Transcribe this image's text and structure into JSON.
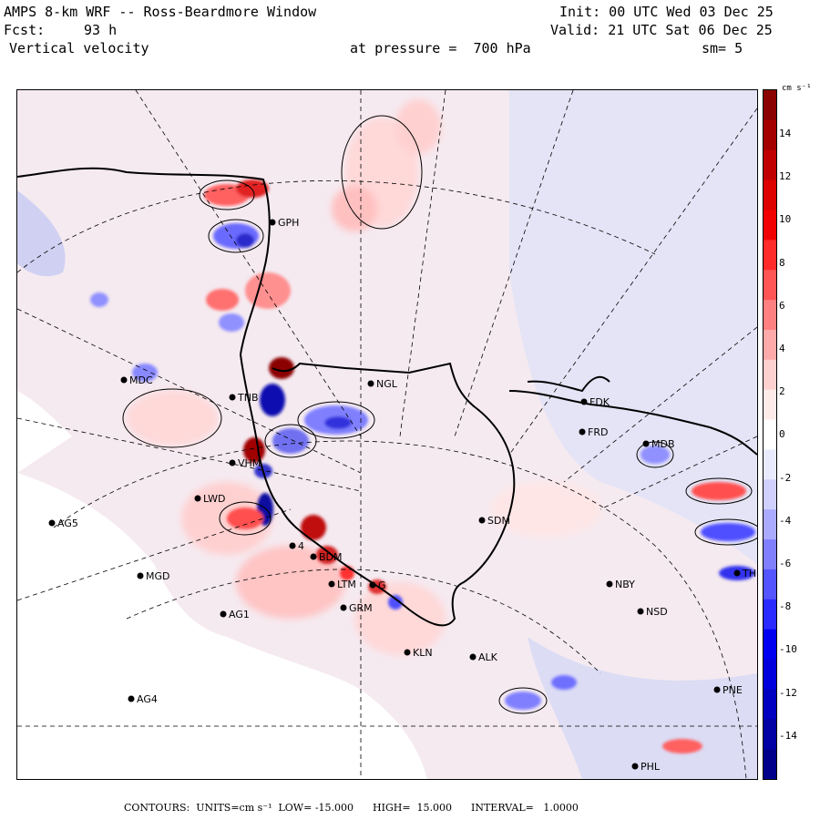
{
  "header": {
    "title": "AMPS 8-km WRF -- Ross-Beardmore Window",
    "init": "Init: 00 UTC Wed 03 Dec 25",
    "fcst_label": "Fcst:",
    "fcst_value": "93 h",
    "valid": "Valid: 21 UTC Sat 06 Dec 25",
    "variable": "Vertical velocity",
    "pressure": "at pressure =  700 hPa",
    "smooth": "sm= 5"
  },
  "stations": [
    {
      "name": "GPH"
    },
    {
      "name": "MDC"
    },
    {
      "name": "NGL"
    },
    {
      "name": "TNB"
    },
    {
      "name": "FDK"
    },
    {
      "name": "FRD"
    },
    {
      "name": "MDB"
    },
    {
      "name": "VHM"
    },
    {
      "name": "LWD"
    },
    {
      "name": "AG5"
    },
    {
      "name": "SDM"
    },
    {
      "name": "4"
    },
    {
      "name": "MGD"
    },
    {
      "name": "BDM"
    },
    {
      "name": "NBY"
    },
    {
      "name": "LTM"
    },
    {
      "name": "GRM"
    },
    {
      "name": "G"
    },
    {
      "name": "AG1"
    },
    {
      "name": "NSD"
    },
    {
      "name": "KLN"
    },
    {
      "name": "ALK"
    },
    {
      "name": "AG4"
    },
    {
      "name": "PNE"
    },
    {
      "name": "PHL"
    },
    {
      "name": "TH"
    }
  ],
  "colorbar": {
    "unit": "cm s⁻¹",
    "ticks": [
      "14",
      "12",
      "10",
      "8",
      "6",
      "4",
      "2",
      "0",
      "-2",
      "-4",
      "-6",
      "-8",
      "-10",
      "-12",
      "-14"
    ],
    "colors": [
      "#8b0000",
      "#a50000",
      "#c00000",
      "#dc0000",
      "#f00000",
      "#ff2a2a",
      "#ff5555",
      "#ff8080",
      "#ffaaaa",
      "#ffd0d0",
      "#ffeaea",
      "#ffffff",
      "#eaeaff",
      "#d0d0ff",
      "#aaaaff",
      "#8080ff",
      "#5555ff",
      "#2a2aff",
      "#0000f0",
      "#0000dc",
      "#0000c0",
      "#0000a5",
      "#00008b"
    ]
  },
  "footer": {
    "text": "CONTOURS:  UNITS=cm s⁻¹  LOW= -15.000      HIGH=  15.000      INTERVAL=   1.0000"
  }
}
